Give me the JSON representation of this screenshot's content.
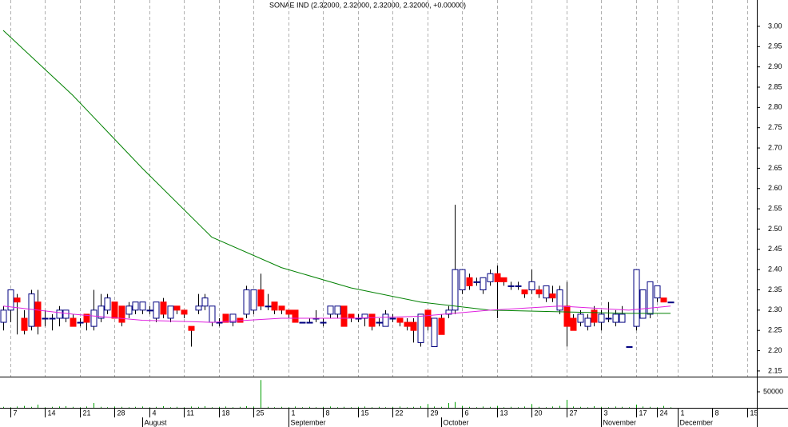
{
  "chart_data": {
    "type": "candlestick",
    "title": "SONAE IND (2.32000, 2.32000, 2.32000, 2.32000, +0.00000)",
    "up_color": "#ffffff",
    "up_edge": "#000080",
    "down_color": "#ff0000",
    "wick_color": "#000000",
    "xlim": [
      -0.46,
      108.4
    ],
    "ylim": [
      2.136,
      3.065
    ],
    "yticks": [
      2.15,
      {
        "value": 2.2,
        "label": "2.20"
      },
      2.25,
      {
        "value": 2.3,
        "label": "2.30"
      },
      2.35,
      {
        "value": 2.4,
        "label": "2.40"
      },
      2.45,
      {
        "value": 2.5,
        "label": "2.50"
      },
      2.55,
      {
        "value": 2.6,
        "label": "2.60"
      },
      2.65,
      {
        "value": 2.7,
        "label": "2.70"
      },
      2.75,
      {
        "value": 2.8,
        "label": "2.80"
      },
      2.85,
      {
        "value": 2.9,
        "label": "2.90"
      },
      2.95,
      {
        "value": 3,
        "label": "3.00"
      }
    ],
    "xticks": [
      {
        "value": 1,
        "label": "7"
      },
      {
        "value": 6,
        "label": "14"
      },
      {
        "value": 11,
        "label": "21"
      },
      {
        "value": 16,
        "label": "28"
      },
      {
        "value": 21,
        "label": "4"
      },
      {
        "value": 26,
        "label": "11"
      },
      {
        "value": 31,
        "label": "18"
      },
      {
        "value": 36,
        "label": "25"
      },
      {
        "value": 41,
        "label": "1"
      },
      {
        "value": 46,
        "label": "8"
      },
      {
        "value": 51,
        "label": "15"
      },
      {
        "value": 56,
        "label": "22"
      },
      {
        "value": 61,
        "label": "29"
      },
      {
        "value": 66,
        "label": "6"
      },
      {
        "value": 71,
        "label": "13"
      },
      {
        "value": 76,
        "label": "20"
      },
      {
        "value": 81,
        "label": "27"
      },
      {
        "value": 86,
        "label": "3"
      },
      {
        "value": 91,
        "label": "17"
      },
      {
        "value": 94,
        "label": "24"
      },
      {
        "value": 97,
        "label": "1"
      },
      {
        "value": 102,
        "label": "8"
      },
      {
        "value": 107,
        "label": "15"
      }
    ],
    "month_ticks": [
      {
        "value": 20,
        "label": "August"
      },
      {
        "value": 41,
        "label": "September"
      },
      {
        "value": 63,
        "label": "October"
      },
      {
        "value": 86,
        "label": "November"
      },
      {
        "value": 97,
        "label": "December"
      }
    ],
    "grid": true,
    "open": [
      2.27,
      2.3,
      2.33,
      2.28,
      2.26,
      2.32,
      2.28,
      2.28,
      2.28,
      2.28,
      2.28,
      2.27,
      2.29,
      2.26,
      2.28,
      2.3,
      2.32,
      2.31,
      2.29,
      2.3,
      2.3,
      2.3,
      2.28,
      2.32,
      2.28,
      2.31,
      2.3,
      2.26,
      2.3,
      2.31,
      2.27,
      2.27,
      2.29,
      2.27,
      2.28,
      2.29,
      2.3,
      2.35,
      2.31,
      2.32,
      2.31,
      2.3,
      2.3,
      2.27,
      2.27,
      2.28,
      2.27,
      2.29,
      2.29,
      2.31,
      2.29,
      2.28,
      2.28,
      2.29,
      2.27,
      2.26,
      2.28,
      2.28,
      2.27,
      2.27,
      2.22,
      2.3,
      2.21,
      2.28,
      2.29,
      2.3,
      2.35,
      2.38,
      2.37,
      2.35,
      2.37,
      2.39,
      2.38,
      2.36,
      2.36,
      2.35,
      2.35,
      2.35,
      2.33,
      2.34,
      2.3,
      2.31,
      2.28,
      2.27,
      2.26,
      2.3,
      2.27,
      2.28,
      2.27,
      2.27,
      2.21,
      2.26,
      2.28,
      2.29,
      2.33,
      2.33,
      2.32
    ],
    "high": [
      2.31,
      2.35,
      2.34,
      2.3,
      2.35,
      2.35,
      2.3,
      2.29,
      2.31,
      2.3,
      2.29,
      2.28,
      2.29,
      2.35,
      2.34,
      2.34,
      2.32,
      2.31,
      2.32,
      2.32,
      2.32,
      2.31,
      2.32,
      2.33,
      2.31,
      2.31,
      2.3,
      2.26,
      2.34,
      2.34,
      2.31,
      2.28,
      2.29,
      2.29,
      2.28,
      2.36,
      2.35,
      2.39,
      2.34,
      2.32,
      2.31,
      2.3,
      2.3,
      2.27,
      2.28,
      2.3,
      2.28,
      2.31,
      2.31,
      2.31,
      2.29,
      2.29,
      2.29,
      2.29,
      2.28,
      2.3,
      2.29,
      2.28,
      2.28,
      2.28,
      2.29,
      2.3,
      2.28,
      2.29,
      2.31,
      2.56,
      2.4,
      2.39,
      2.38,
      2.38,
      2.4,
      2.41,
      2.38,
      2.37,
      2.37,
      2.35,
      2.4,
      2.36,
      2.36,
      2.36,
      2.36,
      2.37,
      2.29,
      2.3,
      2.29,
      2.31,
      2.3,
      2.32,
      2.3,
      2.31,
      2.21,
      2.4,
      2.35,
      2.37,
      2.36,
      2.33,
      2.32
    ],
    "low": [
      2.25,
      2.27,
      2.24,
      2.24,
      2.25,
      2.24,
      2.26,
      2.25,
      2.26,
      2.27,
      2.26,
      2.26,
      2.25,
      2.25,
      2.27,
      2.29,
      2.28,
      2.26,
      2.28,
      2.29,
      2.29,
      2.29,
      2.27,
      2.28,
      2.27,
      2.29,
      2.28,
      2.21,
      2.29,
      2.3,
      2.26,
      2.26,
      2.27,
      2.26,
      2.27,
      2.28,
      2.29,
      2.3,
      2.3,
      2.29,
      2.29,
      2.28,
      2.27,
      2.27,
      2.27,
      2.27,
      2.26,
      2.28,
      2.28,
      2.26,
      2.27,
      2.27,
      2.26,
      2.25,
      2.26,
      2.26,
      2.27,
      2.26,
      2.25,
      2.22,
      2.21,
      2.25,
      2.21,
      2.24,
      2.28,
      2.29,
      2.34,
      2.35,
      2.36,
      2.34,
      2.36,
      2.28,
      2.36,
      2.35,
      2.35,
      2.33,
      2.34,
      2.33,
      2.32,
      2.32,
      2.29,
      2.21,
      2.25,
      2.26,
      2.25,
      2.26,
      2.25,
      2.27,
      2.26,
      2.27,
      2.21,
      2.25,
      2.28,
      2.28,
      2.32,
      2.32,
      2.32
    ],
    "close": [
      2.3,
      2.35,
      2.32,
      2.25,
      2.34,
      2.26,
      2.28,
      2.28,
      2.3,
      2.3,
      2.26,
      2.27,
      2.27,
      2.3,
      2.31,
      2.33,
      2.28,
      2.27,
      2.31,
      2.32,
      2.32,
      2.3,
      2.32,
      2.29,
      2.31,
      2.3,
      2.29,
      2.25,
      2.31,
      2.33,
      2.31,
      2.27,
      2.27,
      2.29,
      2.27,
      2.35,
      2.35,
      2.31,
      2.31,
      2.3,
      2.3,
      2.29,
      2.27,
      2.27,
      2.27,
      2.28,
      2.27,
      2.31,
      2.31,
      2.26,
      2.28,
      2.28,
      2.29,
      2.26,
      2.27,
      2.29,
      2.28,
      2.27,
      2.26,
      2.25,
      2.29,
      2.26,
      2.28,
      2.24,
      2.3,
      2.4,
      2.4,
      2.36,
      2.37,
      2.38,
      2.39,
      2.37,
      2.37,
      2.36,
      2.36,
      2.34,
      2.37,
      2.34,
      2.36,
      2.33,
      2.35,
      2.26,
      2.25,
      2.29,
      2.28,
      2.27,
      2.29,
      2.28,
      2.29,
      2.29,
      2.21,
      2.4,
      2.35,
      2.37,
      2.36,
      2.32,
      2.32
    ],
    "lines": [
      {
        "color": "#008000",
        "x": [
          0,
          10,
          20,
          30,
          40,
          50,
          60,
          70,
          80,
          90,
          96
        ],
        "values": [
          2.99,
          2.83,
          2.65,
          2.48,
          2.405,
          2.355,
          2.32,
          2.3,
          2.296,
          2.292,
          2.292
        ]
      },
      {
        "color": "#e020e0",
        "x": [
          0,
          10,
          20,
          30,
          40,
          50,
          60,
          70,
          80,
          90,
          96
        ],
        "values": [
          2.31,
          2.29,
          2.275,
          2.27,
          2.28,
          2.28,
          2.285,
          2.3,
          2.31,
          2.3,
          2.31
        ]
      }
    ],
    "volume_color": "#00a000",
    "volume_lim": [
      0,
      97500
    ],
    "volume_ticks": [
      50000
    ],
    "volume": [
      3000,
      2000,
      4000,
      6000,
      3000,
      10000,
      2000,
      3000,
      4000,
      5000,
      3000,
      2000,
      4000,
      15000,
      3000,
      2000,
      4000,
      3000,
      2000,
      3000,
      4000,
      2000,
      3000,
      5000,
      2000,
      3000,
      2000,
      4000,
      3000,
      5000,
      2000,
      3000,
      4000,
      2000,
      3000,
      5000,
      4000,
      87000,
      3000,
      2000,
      3000,
      2000,
      4000,
      2000,
      3000,
      2000,
      3000,
      4000,
      2000,
      3000,
      2000,
      3000,
      4000,
      2000,
      3000,
      2000,
      3000,
      4000,
      2000,
      3000,
      5000,
      12000,
      4000,
      3000,
      15000,
      18000,
      6000,
      3000,
      2000,
      4000,
      3000,
      6000,
      2000,
      3000,
      2000,
      4000,
      12000,
      3000,
      2000,
      4000,
      6000,
      25000,
      4000,
      3000,
      2000,
      5000,
      3000,
      2000,
      4000,
      3000,
      2000,
      10000,
      4000,
      3000,
      2000,
      6000,
      2000
    ]
  }
}
